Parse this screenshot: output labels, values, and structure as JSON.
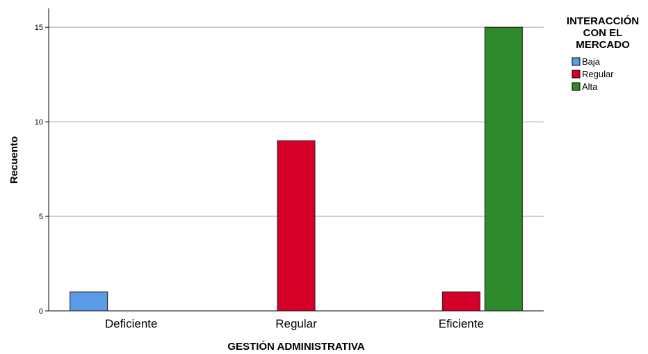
{
  "chart_data": {
    "type": "bar",
    "xlabel": "GESTIÓN ADMINISTRATIVA",
    "ylabel": "Recuento",
    "categories": [
      "Deficiente",
      "Regular",
      "Eficiente"
    ],
    "ylim": [
      0,
      16
    ],
    "yticks": [
      0,
      5,
      10,
      15
    ],
    "grid": true,
    "legend": {
      "title_lines": [
        "INTERACCIÓN",
        "CON EL",
        "MERCADO"
      ],
      "placement": "top-right"
    },
    "series": [
      {
        "name": "Baja",
        "color": "#5b9be6",
        "values": [
          1,
          0,
          0
        ]
      },
      {
        "name": "Regular",
        "color": "#d5002a",
        "values": [
          0,
          9,
          1
        ]
      },
      {
        "name": "Alta",
        "color": "#2f8a2b",
        "values": [
          0,
          0,
          15
        ]
      }
    ]
  }
}
